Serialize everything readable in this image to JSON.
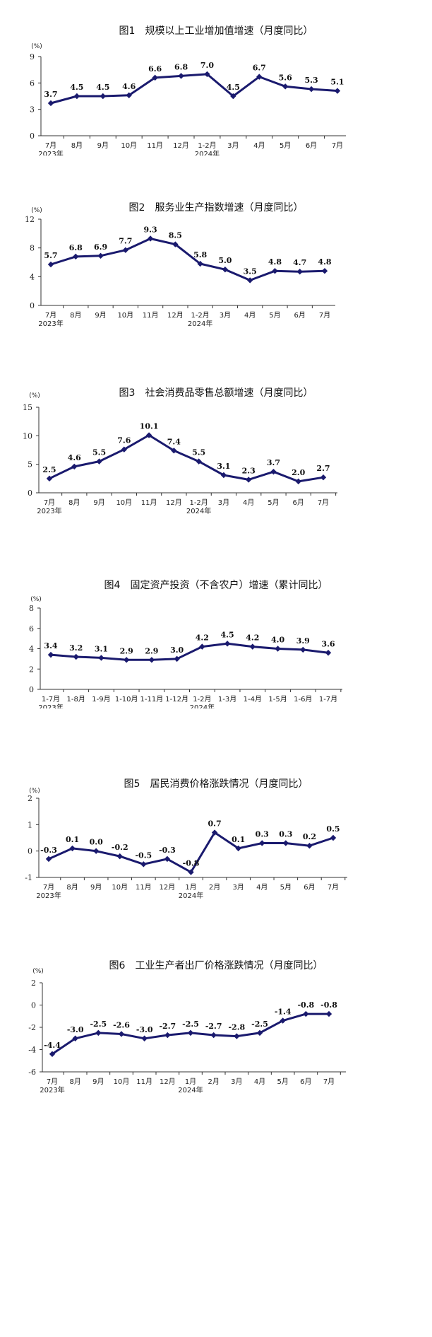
{
  "chart_data": [
    {
      "type": "line",
      "title": "图1　规模以上工业增加值增速（月度同比）",
      "unit": "(%)",
      "categories": [
        "7月",
        "8月",
        "9月",
        "10月",
        "11月",
        "12月",
        "1-2月",
        "3月",
        "4月",
        "5月",
        "6月",
        "7月"
      ],
      "year_labels": [
        "2023年",
        "",
        "",
        "",
        "",
        "",
        "2024年",
        "",
        "",
        "",
        "",
        ""
      ],
      "values": [
        3.7,
        4.5,
        4.5,
        4.6,
        6.6,
        6.8,
        7.0,
        4.5,
        6.7,
        5.6,
        5.3,
        5.1
      ],
      "value_labels": [
        "3.7",
        "4.5",
        "4.5",
        "4.6",
        "6.6",
        "6.8",
        "7.0",
        "4.5",
        "6.7",
        "5.6",
        "5.3",
        "5.1"
      ],
      "label_below": [
        false,
        false,
        false,
        false,
        false,
        false,
        false,
        false,
        false,
        false,
        false,
        false
      ],
      "ylim": [
        0,
        9
      ],
      "yticks": [
        0,
        3,
        6,
        9
      ],
      "color": "#1a1a6e"
    },
    {
      "type": "line",
      "title": "图2　服务业生产指数增速（月度同比）",
      "unit": "(%)",
      "categories": [
        "7月",
        "8月",
        "9月",
        "10月",
        "11月",
        "12月",
        "1-2月",
        "3月",
        "4月",
        "5月",
        "6月",
        "7月"
      ],
      "year_labels": [
        "2023年",
        "",
        "",
        "",
        "",
        "",
        "2024年",
        "",
        "",
        "",
        "",
        ""
      ],
      "values": [
        5.7,
        6.8,
        6.9,
        7.7,
        9.3,
        8.5,
        5.8,
        5.0,
        3.5,
        4.8,
        4.7,
        4.8
      ],
      "value_labels": [
        "5.7",
        "6.8",
        "6.9",
        "7.7",
        "9.3",
        "8.5",
        "5.8",
        "5.0",
        "3.5",
        "4.8",
        "4.7",
        "4.8"
      ],
      "label_below": [
        false,
        false,
        false,
        false,
        false,
        false,
        false,
        false,
        false,
        false,
        false,
        false
      ],
      "ylim": [
        0,
        12
      ],
      "yticks": [
        0,
        4,
        8,
        12
      ],
      "color": "#1a1a6e"
    },
    {
      "type": "line",
      "title": "图3　社会消费品零售总额增速（月度同比）",
      "unit": "(%)",
      "categories": [
        "7月",
        "8月",
        "9月",
        "10月",
        "11月",
        "12月",
        "1-2月",
        "3月",
        "4月",
        "5月",
        "6月",
        "7月"
      ],
      "year_labels": [
        "2023年",
        "",
        "",
        "",
        "",
        "",
        "2024年",
        "",
        "",
        "",
        "",
        ""
      ],
      "values": [
        2.5,
        4.6,
        5.5,
        7.6,
        10.1,
        7.4,
        5.5,
        3.1,
        2.3,
        3.7,
        2.0,
        2.7
      ],
      "value_labels": [
        "2.5",
        "4.6",
        "5.5",
        "7.6",
        "10.1",
        "7.4",
        "5.5",
        "3.1",
        "2.3",
        "3.7",
        "2.0",
        "2.7"
      ],
      "label_below": [
        false,
        false,
        false,
        false,
        false,
        false,
        false,
        false,
        false,
        false,
        false,
        false
      ],
      "ylim": [
        0,
        15
      ],
      "yticks": [
        0,
        5,
        10,
        15
      ],
      "color": "#1a1a6e"
    },
    {
      "type": "line",
      "title": "图4　固定资产投资（不含农户）增速（累计同比）",
      "unit": "(%)",
      "categories": [
        "1-7月",
        "1-8月",
        "1-9月",
        "1-10月",
        "1-11月",
        "1-12月",
        "1-2月",
        "1-3月",
        "1-4月",
        "1-5月",
        "1-6月",
        "1-7月"
      ],
      "year_labels": [
        "2023年",
        "",
        "",
        "",
        "",
        "",
        "2024年",
        "",
        "",
        "",
        "",
        ""
      ],
      "values": [
        3.4,
        3.2,
        3.1,
        2.9,
        2.9,
        3.0,
        4.2,
        4.5,
        4.2,
        4.0,
        3.9,
        3.6
      ],
      "value_labels": [
        "3.4",
        "3.2",
        "3.1",
        "2.9",
        "2.9",
        "3.0",
        "4.2",
        "4.5",
        "4.2",
        "4.0",
        "3.9",
        "3.6"
      ],
      "label_below": [
        false,
        false,
        false,
        false,
        false,
        false,
        false,
        false,
        false,
        false,
        false,
        false
      ],
      "ylim": [
        0,
        8
      ],
      "yticks": [
        0,
        2,
        4,
        6,
        8
      ],
      "color": "#1a1a6e"
    },
    {
      "type": "line",
      "title": "图5　居民消费价格涨跌情况（月度同比）",
      "unit": "(%)",
      "categories": [
        "7月",
        "8月",
        "9月",
        "10月",
        "11月",
        "12月",
        "1月",
        "2月",
        "3月",
        "4月",
        "5月",
        "6月",
        "7月"
      ],
      "year_labels": [
        "2023年",
        "",
        "",
        "",
        "",
        "",
        "2024年",
        "",
        "",
        "",
        "",
        "",
        ""
      ],
      "values": [
        -0.3,
        0.1,
        0.0,
        -0.2,
        -0.5,
        -0.3,
        -0.8,
        0.7,
        0.1,
        0.3,
        0.3,
        0.2,
        0.5
      ],
      "value_labels": [
        "-0.3",
        "0.1",
        "0.0",
        "-0.2",
        "-0.5",
        "-0.3",
        "-0.8",
        "0.7",
        "0.1",
        "0.3",
        "0.3",
        "0.2",
        "0.5"
      ],
      "label_below": [
        false,
        false,
        false,
        false,
        false,
        false,
        false,
        false,
        false,
        false,
        false,
        false,
        false
      ],
      "ylim": [
        -1,
        2
      ],
      "yticks": [
        -1,
        0,
        1,
        2
      ],
      "color": "#1a1a6e"
    },
    {
      "type": "line",
      "title": "图6　工业生产者出厂价格涨跌情况（月度同比）",
      "unit": "(%)",
      "categories": [
        "7月",
        "8月",
        "9月",
        "10月",
        "11月",
        "12月",
        "1月",
        "2月",
        "3月",
        "4月",
        "5月",
        "6月",
        "7月"
      ],
      "year_labels": [
        "2023年",
        "",
        "",
        "",
        "",
        "",
        "2024年",
        "",
        "",
        "",
        "",
        "",
        ""
      ],
      "values": [
        -4.4,
        -3.0,
        -2.5,
        -2.6,
        -3.0,
        -2.7,
        -2.5,
        -2.7,
        -2.8,
        -2.5,
        -1.4,
        -0.8,
        -0.8
      ],
      "value_labels": [
        "-4.4",
        "-3.0",
        "-2.5",
        "-2.6",
        "-3.0",
        "-2.7",
        "-2.5",
        "-2.7",
        "-2.8",
        "-2.5",
        "-1.4",
        "-0.8",
        "-0.8"
      ],
      "label_below": [
        false,
        false,
        false,
        false,
        false,
        false,
        false,
        false,
        false,
        false,
        false,
        false,
        false
      ],
      "ylim": [
        -6,
        2
      ],
      "yticks": [
        -6,
        -4,
        -2,
        0,
        2
      ],
      "color": "#1a1a6e"
    }
  ]
}
